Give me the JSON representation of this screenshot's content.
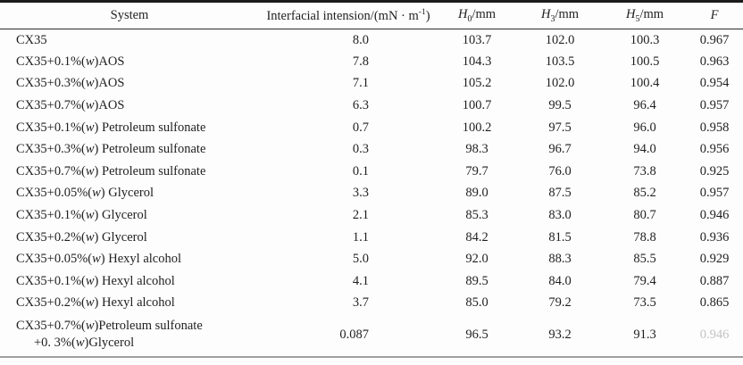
{
  "table": {
    "header": {
      "system": "System",
      "tension": {
        "main": "Interfacial intension/(mN · m",
        "sup": "-1",
        "close": ")"
      },
      "h0": {
        "symbol": "H",
        "sub": "0",
        "unit": "/mm"
      },
      "h3": {
        "symbol": "H",
        "sub": "3",
        "unit": "/mm"
      },
      "h5": {
        "symbol": "H",
        "sub": "5",
        "unit": "/mm"
      },
      "f": "F"
    },
    "rows": [
      {
        "system_lines": [
          "CX35"
        ],
        "tension": "8.0",
        "h0": "103.7",
        "h3": "102.0",
        "h5": "100.3",
        "f": "0.967",
        "f_faded": false
      },
      {
        "system_lines": [
          "CX35+0.1%(w)AOS"
        ],
        "tension": "7.8",
        "h0": "104.3",
        "h3": "103.5",
        "h5": "100.5",
        "f": "0.963",
        "f_faded": false
      },
      {
        "system_lines": [
          "CX35+0.3%(w)AOS"
        ],
        "tension": "7.1",
        "h0": "105.2",
        "h3": "102.0",
        "h5": "100.4",
        "f": "0.954",
        "f_faded": false
      },
      {
        "system_lines": [
          "CX35+0.7%(w)AOS"
        ],
        "tension": "6.3",
        "h0": "100.7",
        "h3": "99.5",
        "h5": "96.4",
        "f": "0.957",
        "f_faded": false
      },
      {
        "system_lines": [
          "CX35+0.1%(w) Petroleum sulfonate"
        ],
        "tension": "0.7",
        "h0": "100.2",
        "h3": "97.5",
        "h5": "96.0",
        "f": "0.958",
        "f_faded": false
      },
      {
        "system_lines": [
          "CX35+0.3%(w) Petroleum sulfonate"
        ],
        "tension": "0.3",
        "h0": "98.3",
        "h3": "96.7",
        "h5": "94.0",
        "f": "0.956",
        "f_faded": false
      },
      {
        "system_lines": [
          "CX35+0.7%(w) Petroleum sulfonate"
        ],
        "tension": "0.1",
        "h0": "79.7",
        "h3": "76.0",
        "h5": "73.8",
        "f": "0.925",
        "f_faded": false
      },
      {
        "system_lines": [
          "CX35+0.05%(w) Glycerol"
        ],
        "tension": "3.3",
        "h0": "89.0",
        "h3": "87.5",
        "h5": "85.2",
        "f": "0.957",
        "f_faded": false
      },
      {
        "system_lines": [
          "CX35+0.1%(w) Glycerol"
        ],
        "tension": "2.1",
        "h0": "85.3",
        "h3": "83.0",
        "h5": "80.7",
        "f": "0.946",
        "f_faded": false
      },
      {
        "system_lines": [
          "CX35+0.2%(w) Glycerol"
        ],
        "tension": "1.1",
        "h0": "84.2",
        "h3": "81.5",
        "h5": "78.8",
        "f": "0.936",
        "f_faded": false
      },
      {
        "system_lines": [
          "CX35+0.05%(w) Hexyl alcohol"
        ],
        "tension": "5.0",
        "h0": "92.0",
        "h3": "88.3",
        "h5": "85.5",
        "f": "0.929",
        "f_faded": false
      },
      {
        "system_lines": [
          "CX35+0.1%(w) Hexyl alcohol"
        ],
        "tension": "4.1",
        "h0": "89.5",
        "h3": "84.0",
        "h5": "79.4",
        "f": "0.887",
        "f_faded": false
      },
      {
        "system_lines": [
          "CX35+0.2%(w) Hexyl alcohol"
        ],
        "tension": "3.7",
        "h0": "85.0",
        "h3": "79.2",
        "h5": "73.5",
        "f": "0.865",
        "f_faded": false
      },
      {
        "system_lines": [
          "CX35+0.7%(w)Petroleum sulfonate",
          "+0. 3%(w)Glycerol"
        ],
        "tension": "0.087",
        "h0": "96.5",
        "h3": "93.2",
        "h5": "91.3",
        "f": "0.946",
        "f_faded": true
      }
    ]
  }
}
